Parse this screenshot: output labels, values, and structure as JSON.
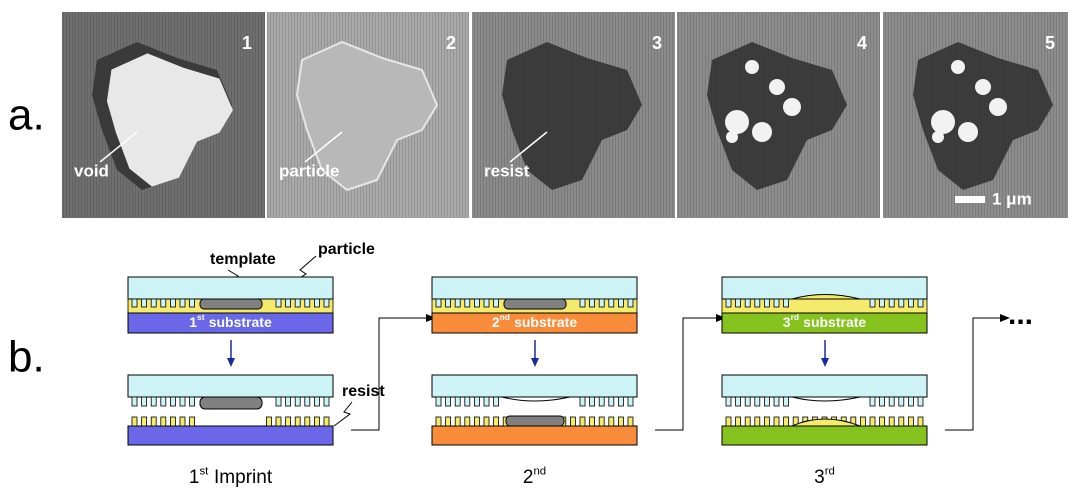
{
  "panel_a": {
    "label": "a.",
    "images": [
      {
        "number": "1",
        "annotation": "void"
      },
      {
        "number": "2",
        "annotation": "particle"
      },
      {
        "number": "3",
        "annotation": "resist"
      },
      {
        "number": "4"
      },
      {
        "number": "5"
      }
    ],
    "scale_bar": "1 μm"
  },
  "panel_b": {
    "label": "b.",
    "callouts": {
      "template": "template",
      "particle": "particle",
      "resist": "resist"
    },
    "steps": [
      {
        "substrate": {
          "num": "1",
          "sup": "st",
          "text": "substrate"
        },
        "caption": {
          "num": "1",
          "sup": "st",
          "text": "Imprint"
        },
        "substrate_color": "#6a67e8"
      },
      {
        "substrate": {
          "num": "2",
          "sup": "nd",
          "text": "substrate"
        },
        "caption": {
          "num": "2",
          "sup": "nd"
        },
        "substrate_color": "#f98c3a"
      },
      {
        "substrate": {
          "num": "3",
          "sup": "rd",
          "text": "substrate"
        },
        "caption": {
          "num": "3",
          "sup": "rd"
        },
        "substrate_color": "#86c21e"
      }
    ],
    "ellipsis": "..."
  }
}
